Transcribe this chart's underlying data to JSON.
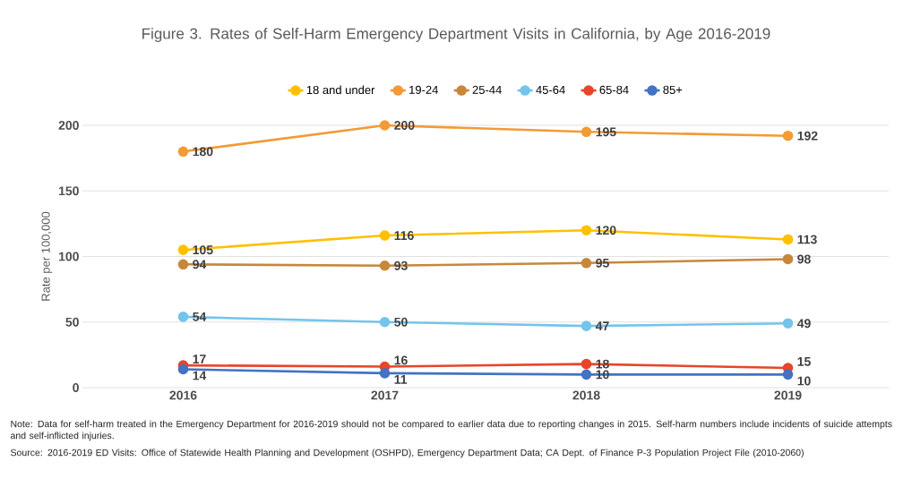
{
  "chart_data": {
    "type": "line",
    "title": "Figure 3. Rates of Self-Harm Emergency Department Visits in California, by Age 2016-2019",
    "ylabel": "Rate per 100,000",
    "categories": [
      "2016",
      "2017",
      "2018",
      "2019"
    ],
    "series": [
      {
        "name": "18 and under",
        "color": "#ffc000",
        "values": [
          105,
          116,
          120,
          113
        ]
      },
      {
        "name": "19-24",
        "color": "#f39a36",
        "values": [
          180,
          200,
          195,
          192
        ]
      },
      {
        "name": "25-44",
        "color": "#c8873a",
        "values": [
          94,
          93,
          95,
          98
        ]
      },
      {
        "name": "45-64",
        "color": "#74c4ec",
        "values": [
          54,
          50,
          47,
          49
        ]
      },
      {
        "name": "65-84",
        "color": "#e8452a",
        "values": [
          17,
          16,
          18,
          15
        ]
      },
      {
        "name": "85+",
        "color": "#4472c4",
        "values": [
          14,
          11,
          10,
          10
        ]
      }
    ],
    "ylim": [
      0,
      200
    ],
    "yticks": [
      0,
      50,
      100,
      150,
      200
    ],
    "grid": "y",
    "legend": "top",
    "marker": "circle",
    "line_style": "solid",
    "data_labels": true,
    "annotations": [
      "Note: Data for self-harm treated in the Emergency Department for 2016-2019 should not be compared to earlier data due to reporting changes in 2015. Self-harm numbers include incidents of suicide attempts and self-inflicted injuries.",
      "Source: 2016-2019 ED Visits: Office of Statewide Health Planning and Development (OSHPD), Emergency Department Data; CA Dept. of Finance P-3 Population Project File (2010-2060)"
    ]
  }
}
